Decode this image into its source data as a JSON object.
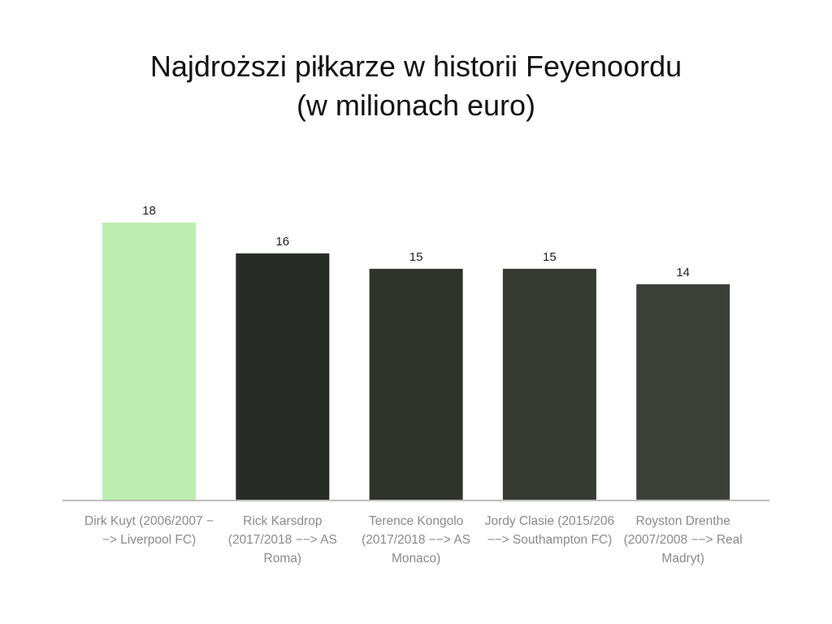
{
  "chart_data": {
    "type": "bar",
    "title": "Najdroższi piłkarze w historii Feyenoordu",
    "subtitle": "(w milionach euro)",
    "categories": [
      "Dirk Kuyt (2006/2007 −−> Liverpool FC)",
      "Rick Karsdrop (2017/2018 −−> AS Roma)",
      "Terence Kongolo (2017/2018 −−> AS Monaco)",
      "Jordy Clasie (2015/206 −−> Southampton FC)",
      "Royston Drenthe (2007/2008 −−> Real Madryt)"
    ],
    "values": [
      18,
      16,
      15,
      15,
      14
    ],
    "data_labels": [
      "18",
      "16",
      "15",
      "15",
      "14"
    ],
    "colors": [
      "#bdeeb0",
      "#272b25",
      "#2f332c",
      "#353a33",
      "#3c4039"
    ],
    "xlabel": "",
    "ylabel": "",
    "ylim": [
      0,
      18
    ],
    "grid": false,
    "legend": "none"
  }
}
